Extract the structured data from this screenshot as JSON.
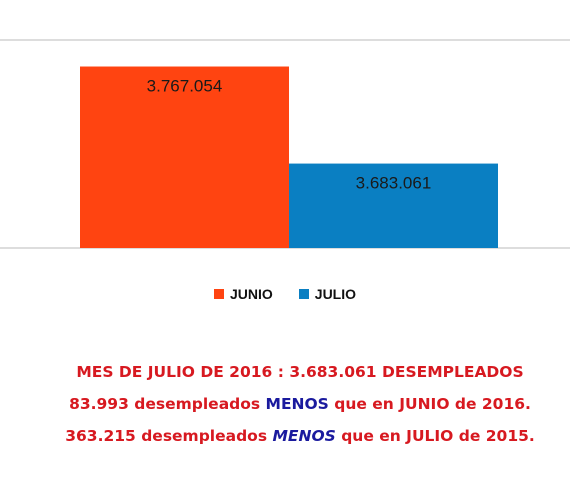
{
  "colors": {
    "junio": "#ff4411",
    "julio": "#0a7fc2",
    "gridline": "#bbbbbb",
    "note_red": "#d71920",
    "note_blue": "#1a1a9e"
  },
  "chart_data": {
    "type": "bar",
    "categories": [
      "JUNIO",
      "JULIO"
    ],
    "values": [
      3767054,
      3683061
    ],
    "data_labels": [
      "3.767.054",
      "3.683.061"
    ],
    "ylim": [
      3610000,
      3790000
    ],
    "legend_placement": "bottom",
    "grid": true
  },
  "legend": [
    {
      "label": "JUNIO",
      "color": "#ff4411"
    },
    {
      "label": "JULIO",
      "color": "#0a7fc2"
    }
  ],
  "notes": {
    "line1": "MES DE JULIO DE 2016 : 3.683.061 DESEMPLEADOS",
    "line2_pre": "83.993 desempleados ",
    "line2_emph": "MENOS",
    "line2_post": " que en JUNIO de 2016.",
    "line3_pre": "363.215 desempleados ",
    "line3_emph": "MENOS",
    "line3_post": " que en JULIO de 2015."
  }
}
